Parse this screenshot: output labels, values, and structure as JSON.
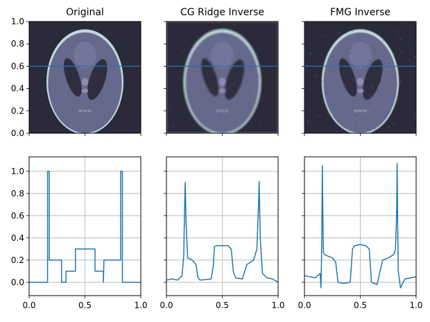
{
  "colors": {
    "series": "#1f77b4",
    "cut_line": "#1f77b4",
    "background": "#2a2a3a",
    "phantom_outer": "#c0d8dc",
    "phantom_inner": "#66688c",
    "ellipse_dark": "#2e2e40",
    "ellipse_light": "#8c8eb0"
  },
  "chart_data": [
    {
      "type": "heatmap",
      "title": "Original",
      "content": "shepp-logan-phantom",
      "blur": 0,
      "noise": 0,
      "xlim": [
        0,
        1
      ],
      "ylim": [
        0,
        1
      ],
      "yticks": [
        "0.0",
        "0.2",
        "0.4",
        "0.6",
        "0.8",
        "1.0"
      ],
      "y_tick_labels_shown": true,
      "horizontal_line_y": 0.6
    },
    {
      "type": "heatmap",
      "title": "CG Ridge Inverse",
      "content": "shepp-logan-phantom",
      "blur": 1.2,
      "noise": 0.2,
      "xlim": [
        0,
        1
      ],
      "ylim": [
        0,
        1
      ],
      "y_tick_labels_shown": false,
      "horizontal_line_y": 0.6
    },
    {
      "type": "heatmap",
      "title": "FMG Inverse",
      "content": "shepp-logan-phantom",
      "blur": 0.6,
      "noise": 0.5,
      "xlim": [
        0,
        1
      ],
      "ylim": [
        0,
        1
      ],
      "y_tick_labels_shown": false,
      "horizontal_line_y": 0.6
    },
    {
      "type": "line",
      "xlim": [
        0,
        1
      ],
      "ylim": [
        -0.12,
        1.13
      ],
      "xticks": [
        "0.0",
        "0.5",
        "1.0"
      ],
      "yticks": [
        "0.0",
        "0.2",
        "0.4",
        "0.6",
        "0.8",
        "1.0"
      ],
      "y_tick_labels_shown": true,
      "grid": true,
      "x": [
        0,
        0.165,
        0.165,
        0.18,
        0.18,
        0.29,
        0.29,
        0.33,
        0.33,
        0.335,
        0.415,
        0.415,
        0.59,
        0.59,
        0.665,
        0.665,
        0.67,
        0.8,
        0.82,
        0.82,
        0.835,
        0.835,
        1.0
      ],
      "y": [
        0,
        0,
        1.0,
        1.0,
        0.2,
        0.2,
        0,
        0,
        0.1,
        0.1,
        0.1,
        0.3,
        0.3,
        0.1,
        0.1,
        0,
        0.2,
        0.2,
        0.2,
        1.0,
        1.0,
        0,
        0
      ]
    },
    {
      "type": "line",
      "xlim": [
        0,
        1
      ],
      "ylim": [
        -0.12,
        1.13
      ],
      "xticks": [
        "0.0",
        "0.5",
        "1.0"
      ],
      "y_tick_labels_shown": false,
      "grid": true,
      "x": [
        0,
        0.05,
        0.1,
        0.14,
        0.155,
        0.163,
        0.168,
        0.175,
        0.19,
        0.23,
        0.265,
        0.28,
        0.3,
        0.4,
        0.42,
        0.43,
        0.45,
        0.55,
        0.58,
        0.6,
        0.62,
        0.68,
        0.72,
        0.78,
        0.81,
        0.825,
        0.83,
        0.84,
        0.86,
        0.9,
        0.95,
        1.0
      ],
      "y": [
        0.02,
        0.03,
        0.02,
        0.06,
        0.25,
        0.7,
        0.9,
        0.55,
        0.22,
        0.2,
        0.16,
        0.05,
        0.02,
        0.03,
        0.15,
        0.32,
        0.33,
        0.33,
        0.3,
        0.09,
        0.04,
        0.03,
        0.16,
        0.2,
        0.3,
        0.7,
        0.91,
        0.4,
        0.08,
        0.04,
        0.03,
        0.0
      ]
    },
    {
      "type": "line",
      "xlim": [
        0,
        1
      ],
      "ylim": [
        -0.12,
        1.13
      ],
      "xticks": [
        "0.0",
        "0.5",
        "1.0"
      ],
      "y_tick_labels_shown": false,
      "grid": true,
      "x": [
        0,
        0.05,
        0.1,
        0.14,
        0.148,
        0.155,
        0.16,
        0.165,
        0.17,
        0.18,
        0.2,
        0.25,
        0.28,
        0.3,
        0.35,
        0.41,
        0.43,
        0.45,
        0.5,
        0.55,
        0.58,
        0.6,
        0.65,
        0.7,
        0.75,
        0.8,
        0.815,
        0.825,
        0.83,
        0.835,
        0.84,
        0.86,
        0.9,
        0.95,
        1.0
      ],
      "y": [
        0.06,
        0.05,
        0.04,
        0.08,
        -0.05,
        0.35,
        1.05,
        0.6,
        0.27,
        0.25,
        0.24,
        0.22,
        0.18,
        0.0,
        -0.01,
        0.0,
        0.3,
        0.33,
        0.34,
        0.33,
        0.3,
        0.0,
        -0.02,
        0.2,
        0.22,
        0.25,
        0.3,
        0.6,
        1.07,
        0.5,
        0.1,
        -0.05,
        0.03,
        0.04,
        0.05
      ]
    }
  ]
}
